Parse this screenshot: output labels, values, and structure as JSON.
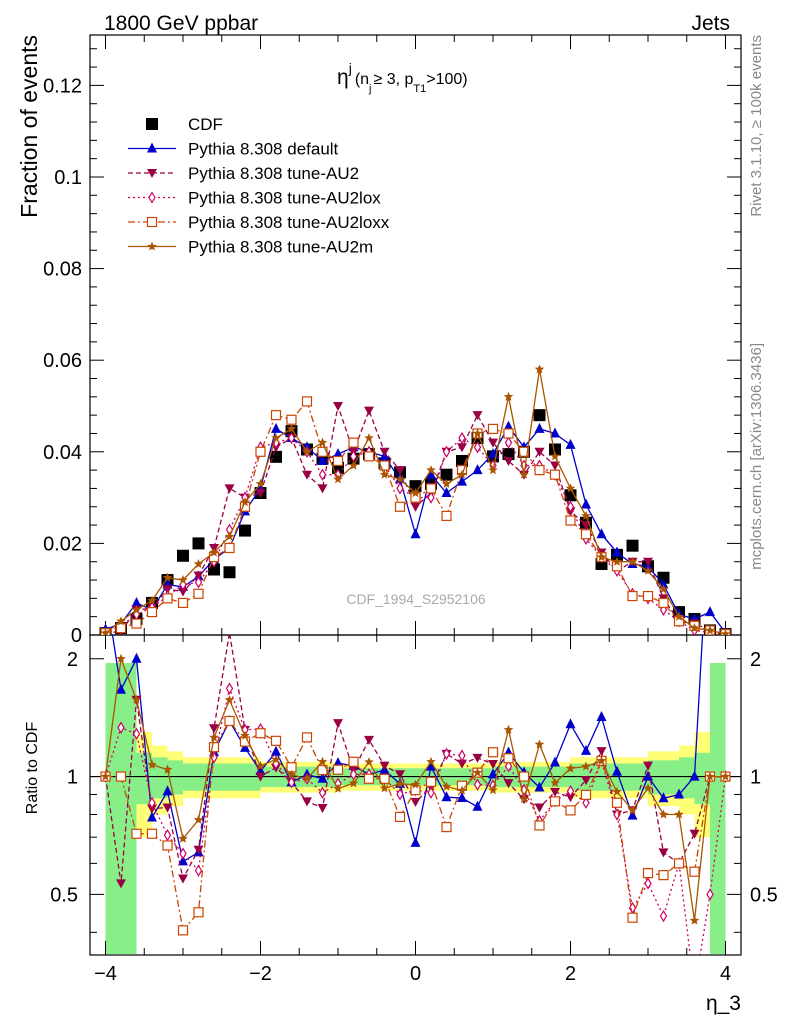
{
  "header": {
    "left": "1800 GeV ppbar",
    "right": "Jets"
  },
  "side_labels": {
    "rivet": "Rivet 3.1.10, ≥ 100k events",
    "mcplots": "mcplots.cern.ch [arXiv:1306.3436]"
  },
  "watermark": "CDF_1994_S2952106",
  "chart_data": {
    "type": "scatter",
    "title_main": "η",
    "title_sup": "j",
    "title_sub_text": "(n",
    "title_sub_j": "j",
    "title_sub_mid": "≥ 3, p",
    "title_sub_T1": "T1",
    "title_sub_end": ">100)",
    "xlabel": "η_3",
    "ylabel_top": "Fraction of events",
    "ylabel_bottom": "Ratio to CDF",
    "xlim": [
      -4.2,
      4.2
    ],
    "ylim_top": [
      0,
      0.131
    ],
    "ylim_ratio": [
      0.35,
      2.3
    ],
    "log_ratio": true,
    "x_ticks": [
      "−4",
      "−2",
      "0",
      "2",
      "4"
    ],
    "y_ticks_top": [
      "0",
      "0.02",
      "0.04",
      "0.06",
      "0.08",
      "0.1",
      "0.12"
    ],
    "y_ticks_ratio": [
      "0.5",
      "1",
      "2"
    ],
    "x": [
      -4.0,
      -3.8,
      -3.6,
      -3.4,
      -3.2,
      -3.0,
      -2.8,
      -2.6,
      -2.4,
      -2.2,
      -2.0,
      -1.8,
      -1.6,
      -1.4,
      -1.2,
      -1.0,
      -0.8,
      -0.6,
      -0.4,
      -0.2,
      0.0,
      0.2,
      0.4,
      0.6,
      0.8,
      1.0,
      1.2,
      1.4,
      1.6,
      1.8,
      2.0,
      2.2,
      2.4,
      2.6,
      2.8,
      3.0,
      3.2,
      3.4,
      3.6,
      3.8,
      4.0
    ],
    "series": [
      {
        "name": "CDF",
        "color": "#000000",
        "marker": "square-filled",
        "values": [
          0.0004,
          0.0015,
          0.0035,
          0.007,
          0.012,
          0.0173,
          0.02,
          0.0143,
          0.0137,
          0.0228,
          0.031,
          0.0389,
          0.0445,
          0.0405,
          0.0385,
          0.0365,
          0.0385,
          0.0395,
          0.0375,
          0.0355,
          0.0325,
          0.033,
          0.035,
          0.038,
          0.043,
          0.039,
          0.0395,
          0.04,
          0.048,
          0.0405,
          0.0305,
          0.0245,
          0.0155,
          0.0175,
          0.0195,
          0.015,
          0.0125,
          0.005,
          0.0035,
          0.001,
          0.0002
        ]
      },
      {
        "name": "Pythia 8.308 default",
        "color": "#0000cc",
        "marker": "triangle-up-filled",
        "values": [
          0.0012,
          0.0025,
          0.007,
          0.0055,
          0.011,
          0.0105,
          0.0128,
          0.0165,
          0.019,
          0.027,
          0.032,
          0.045,
          0.043,
          0.041,
          0.038,
          0.0395,
          0.041,
          0.04,
          0.039,
          0.034,
          0.022,
          0.035,
          0.031,
          0.0335,
          0.036,
          0.0395,
          0.0455,
          0.041,
          0.045,
          0.044,
          0.0415,
          0.0285,
          0.022,
          0.018,
          0.0155,
          0.015,
          0.011,
          0.0045,
          0.0035,
          0.005,
          0.0005
        ]
      },
      {
        "name": "Pythia 8.308 tune-AU2",
        "color": "#990044",
        "marker": "triangle-down-filled",
        "values": [
          0.0004,
          0.0008,
          0.0055,
          0.0058,
          0.01,
          0.0095,
          0.013,
          0.019,
          0.032,
          0.03,
          0.031,
          0.041,
          0.043,
          0.035,
          0.032,
          0.05,
          0.04,
          0.049,
          0.04,
          0.036,
          0.028,
          0.031,
          0.04,
          0.041,
          0.048,
          0.042,
          0.038,
          0.035,
          0.04,
          0.037,
          0.027,
          0.024,
          0.018,
          0.014,
          0.016,
          0.016,
          0.008,
          0.003,
          0.0025,
          0.001,
          0.0002
        ]
      },
      {
        "name": "Pythia 8.308 tune-AU2lox",
        "color": "#cc0066",
        "marker": "diamond-open",
        "values": [
          0.0004,
          0.002,
          0.0045,
          0.006,
          0.0085,
          0.011,
          0.0115,
          0.016,
          0.023,
          0.03,
          0.041,
          0.042,
          0.043,
          0.04,
          0.035,
          0.035,
          0.039,
          0.04,
          0.037,
          0.032,
          0.03,
          0.03,
          0.04,
          0.043,
          0.041,
          0.037,
          0.042,
          0.037,
          0.037,
          0.035,
          0.028,
          0.021,
          0.017,
          0.014,
          0.009,
          0.008,
          0.0055,
          0.003,
          0.001,
          0.0005,
          0.0002
        ]
      },
      {
        "name": "Pythia 8.308 tune-AU2loxx",
        "color": "#cc4400",
        "marker": "square-open",
        "values": [
          0.0004,
          0.0015,
          0.0025,
          0.005,
          0.008,
          0.007,
          0.009,
          0.017,
          0.019,
          0.028,
          0.04,
          0.048,
          0.047,
          0.051,
          0.04,
          0.038,
          0.042,
          0.039,
          0.037,
          0.028,
          0.03,
          0.032,
          0.026,
          0.036,
          0.044,
          0.045,
          0.044,
          0.04,
          0.036,
          0.035,
          0.025,
          0.022,
          0.017,
          0.015,
          0.0085,
          0.0085,
          0.007,
          0.003,
          0.002,
          0.001,
          0.0002
        ]
      },
      {
        "name": "Pythia 8.308 tune-AU2m",
        "color": "#aa5500",
        "marker": "star-filled",
        "values": [
          0.0004,
          0.003,
          0.0055,
          0.0075,
          0.0125,
          0.012,
          0.0155,
          0.018,
          0.0215,
          0.029,
          0.033,
          0.043,
          0.045,
          0.04,
          0.042,
          0.034,
          0.037,
          0.043,
          0.035,
          0.034,
          0.031,
          0.036,
          0.033,
          0.035,
          0.044,
          0.036,
          0.052,
          0.035,
          0.058,
          0.039,
          0.032,
          0.026,
          0.017,
          0.016,
          0.016,
          0.014,
          0.01,
          0.004,
          0.0015,
          0.001,
          0.0002
        ]
      }
    ],
    "uncertainty_bands": {
      "inner_color": "#88ee88",
      "outer_color": "#ffff77",
      "edges": [
        -4.0,
        -3.8,
        -3.6,
        -3.4,
        -3.2,
        -3.0,
        -2.0,
        -1.0,
        0.0,
        1.0,
        2.0,
        3.0,
        3.4,
        3.6,
        3.8,
        4.0
      ],
      "inner_half": [
        0.95,
        0.95,
        0.15,
        0.12,
        0.1,
        0.08,
        0.06,
        0.05,
        0.05,
        0.06,
        0.08,
        0.1,
        0.12,
        0.15,
        0.95
      ],
      "outer_half": [
        0.95,
        0.95,
        0.3,
        0.2,
        0.16,
        0.12,
        0.09,
        0.08,
        0.08,
        0.09,
        0.12,
        0.16,
        0.2,
        0.3,
        0.95
      ]
    }
  }
}
